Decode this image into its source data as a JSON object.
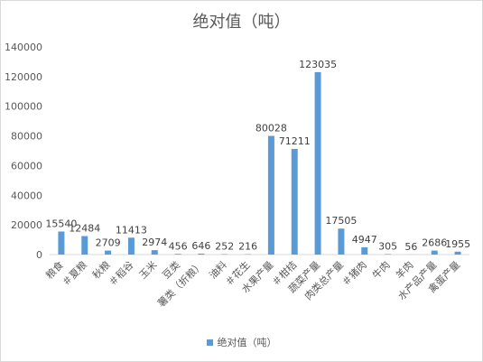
{
  "chart_data": {
    "type": "bar",
    "title": "绝对值（吨）",
    "categories": [
      "粮食",
      "＃夏粮",
      "秋粮",
      "＃稻谷",
      "玉米",
      "豆类",
      "薯类（折粮）",
      "油料",
      "＃花生",
      "水果产量",
      "＃柑桔",
      "蔬菜产量",
      "肉类总产量",
      "＃猪肉",
      "牛肉",
      "羊肉",
      "水产品产量",
      "禽蛋产量"
    ],
    "series": [
      {
        "name": "绝对值（吨）",
        "values": [
          15540,
          12484,
          2709,
          11413,
          2974,
          456,
          646,
          252,
          216,
          80028,
          71211,
          123035,
          17505,
          4947,
          305,
          56,
          2686,
          1955
        ],
        "labels": [
          "15540",
          "12484",
          "2709",
          "11413",
          "2974",
          "456",
          "646",
          "252",
          "216",
          "80028",
          "71211",
          "123035",
          "17505",
          "4947",
          "305",
          "56",
          "2686",
          "1955"
        ]
      }
    ],
    "y_ticks": [
      "0",
      "20000",
      "40000",
      "60000",
      "80000",
      "100000",
      "120000",
      "140000"
    ],
    "ylim": [
      0,
      140000
    ],
    "grid": false,
    "legend_position": "bottom",
    "colors": {
      "bar": "#5b9bd5",
      "axis": "#d9d9d9",
      "text": "#595959",
      "label": "#404040"
    }
  }
}
